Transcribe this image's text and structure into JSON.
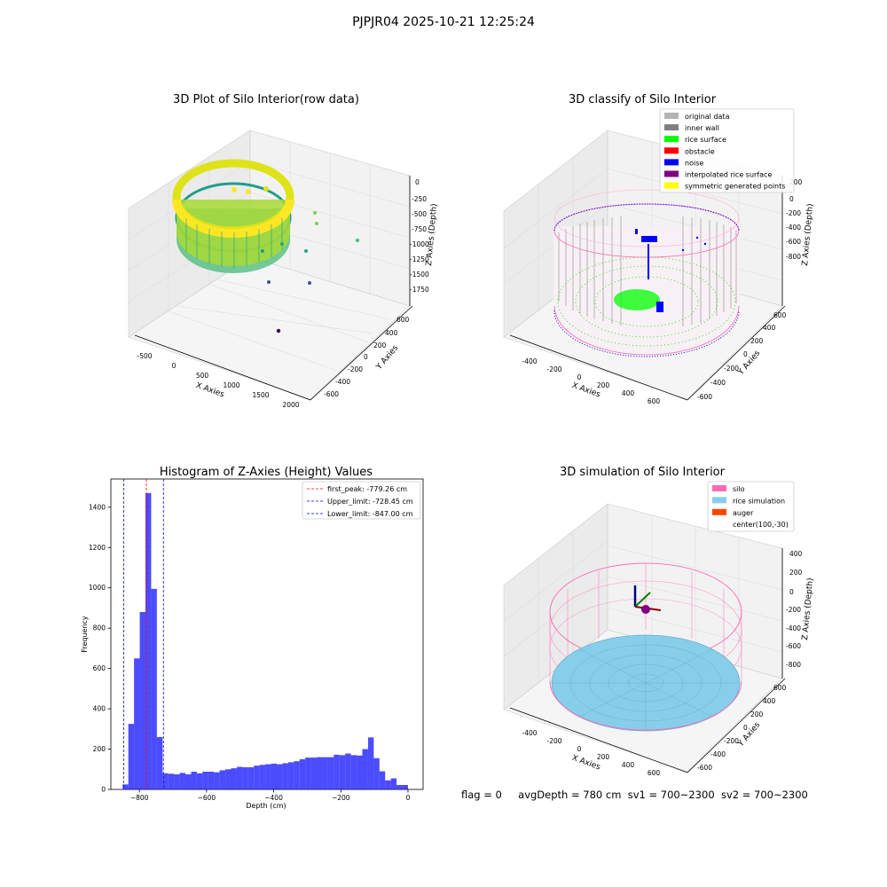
{
  "suptitle": "PJPJR04 2025-10-21 12:25:24",
  "caption": {
    "flag": "flag = 0",
    "avg_depth": "avgDepth = 780 cm",
    "sv1": "sv1 = 700~2300",
    "sv2": "sv2 = 700~2300"
  },
  "panels": {
    "raw": {
      "title": "3D Plot of Silo Interior(row data)",
      "xlabel": "X Axies",
      "ylabel": "Y Axies",
      "zlabel": "Z Axies (Depth)",
      "x_ticks": [
        "-500",
        "0",
        "500",
        "1000",
        "1500",
        "2000"
      ],
      "y_ticks": [
        "600",
        "400",
        "200",
        "0",
        "-200",
        "-400",
        "-600"
      ],
      "z_ticks": [
        "0",
        "-250",
        "-500",
        "-750",
        "-1000",
        "-1250",
        "-1500",
        "-1750"
      ]
    },
    "classify": {
      "title": "3D classify of Silo Interior",
      "xlabel": "X Axies",
      "ylabel": "Y Axies",
      "zlabel": "Z Axies (Depth)",
      "x_ticks": [
        "-400",
        "-200",
        "0",
        "200",
        "400",
        "600"
      ],
      "y_ticks": [
        "600",
        "400",
        "200",
        "0",
        "-200",
        "-400",
        "-600"
      ],
      "z_ticks": [
        "200",
        "0",
        "-200",
        "-400",
        "-600",
        "-800"
      ],
      "legend": [
        {
          "label": "original data",
          "color": "#b3b3b3"
        },
        {
          "label": "inner wall",
          "color": "#808080"
        },
        {
          "label": "rice surface",
          "color": "#00ff00"
        },
        {
          "label": "obstacle",
          "color": "#ff0000"
        },
        {
          "label": "noise",
          "color": "#0000ff"
        },
        {
          "label": "interpolated rice surface",
          "color": "#800080"
        },
        {
          "label": "symmetric generated points",
          "color": "#ffff00"
        }
      ]
    },
    "simulation": {
      "title": "3D simulation of Silo Interior",
      "xlabel": "X Axies",
      "ylabel": "Y Axies",
      "zlabel": "Z Axies (Depth)",
      "x_ticks": [
        "-400",
        "-200",
        "0",
        "200",
        "400",
        "600"
      ],
      "y_ticks": [
        "600",
        "400",
        "200",
        "0",
        "-200",
        "-400",
        "-600"
      ],
      "z_ticks": [
        "400",
        "200",
        "0",
        "-200",
        "-400",
        "-600",
        "-800"
      ],
      "legend": [
        {
          "label": "silo",
          "color": "#ff69b4"
        },
        {
          "label": "rice simulation",
          "color": "#87ceeb"
        },
        {
          "label": "auger",
          "color": "#ff4500"
        },
        {
          "label": "center(100,-30)",
          "color": ""
        }
      ]
    }
  },
  "chart_data": {
    "type": "bar",
    "title": "Histogram of Z-Axies (Height) Values",
    "xlabel": "Depth (cm)",
    "ylabel": "Frequency",
    "xlim": [
      -885,
      45
    ],
    "ylim": [
      0,
      1540
    ],
    "x_ticks": [
      -800,
      -600,
      -400,
      -200,
      0
    ],
    "y_ticks": [
      0,
      200,
      400,
      600,
      800,
      1000,
      1200,
      1400
    ],
    "bar_color": "#0000ff",
    "bins": [
      {
        "x0": -850,
        "x1": -833,
        "count": 25
      },
      {
        "x0": -833,
        "x1": -816,
        "count": 325
      },
      {
        "x0": -816,
        "x1": -799,
        "count": 650
      },
      {
        "x0": -799,
        "x1": -782,
        "count": 880
      },
      {
        "x0": -782,
        "x1": -765,
        "count": 1470
      },
      {
        "x0": -765,
        "x1": -748,
        "count": 995
      },
      {
        "x0": -748,
        "x1": -731,
        "count": 260
      },
      {
        "x0": -731,
        "x1": -714,
        "count": 80
      },
      {
        "x0": -714,
        "x1": -697,
        "count": 78
      },
      {
        "x0": -697,
        "x1": -680,
        "count": 75
      },
      {
        "x0": -680,
        "x1": -663,
        "count": 82
      },
      {
        "x0": -663,
        "x1": -646,
        "count": 75
      },
      {
        "x0": -646,
        "x1": -629,
        "count": 88
      },
      {
        "x0": -629,
        "x1": -612,
        "count": 80
      },
      {
        "x0": -612,
        "x1": -595,
        "count": 88
      },
      {
        "x0": -595,
        "x1": -578,
        "count": 88
      },
      {
        "x0": -578,
        "x1": -561,
        "count": 85
      },
      {
        "x0": -561,
        "x1": -544,
        "count": 95
      },
      {
        "x0": -544,
        "x1": -527,
        "count": 100
      },
      {
        "x0": -527,
        "x1": -510,
        "count": 105
      },
      {
        "x0": -510,
        "x1": -493,
        "count": 112
      },
      {
        "x0": -493,
        "x1": -476,
        "count": 110
      },
      {
        "x0": -476,
        "x1": -459,
        "count": 110
      },
      {
        "x0": -459,
        "x1": -442,
        "count": 118
      },
      {
        "x0": -442,
        "x1": -425,
        "count": 122
      },
      {
        "x0": -425,
        "x1": -408,
        "count": 125
      },
      {
        "x0": -408,
        "x1": -391,
        "count": 128
      },
      {
        "x0": -391,
        "x1": -374,
        "count": 125
      },
      {
        "x0": -374,
        "x1": -357,
        "count": 130
      },
      {
        "x0": -357,
        "x1": -340,
        "count": 135
      },
      {
        "x0": -340,
        "x1": -323,
        "count": 140
      },
      {
        "x0": -323,
        "x1": -306,
        "count": 150
      },
      {
        "x0": -306,
        "x1": -289,
        "count": 158
      },
      {
        "x0": -289,
        "x1": -272,
        "count": 158
      },
      {
        "x0": -272,
        "x1": -255,
        "count": 160
      },
      {
        "x0": -255,
        "x1": -238,
        "count": 160
      },
      {
        "x0": -238,
        "x1": -221,
        "count": 160
      },
      {
        "x0": -221,
        "x1": -204,
        "count": 172
      },
      {
        "x0": -204,
        "x1": -187,
        "count": 170
      },
      {
        "x0": -187,
        "x1": -170,
        "count": 178
      },
      {
        "x0": -170,
        "x1": -153,
        "count": 170
      },
      {
        "x0": -153,
        "x1": -136,
        "count": 168
      },
      {
        "x0": -136,
        "x1": -119,
        "count": 200
      },
      {
        "x0": -119,
        "x1": -102,
        "count": 258
      },
      {
        "x0": -102,
        "x1": -85,
        "count": 155
      },
      {
        "x0": -85,
        "x1": -68,
        "count": 90
      },
      {
        "x0": -68,
        "x1": -51,
        "count": 45
      },
      {
        "x0": -51,
        "x1": -34,
        "count": 55
      },
      {
        "x0": -34,
        "x1": -17,
        "count": 22
      },
      {
        "x0": -17,
        "x1": 0,
        "count": 22
      }
    ],
    "reference_lines": [
      {
        "label": "first_peak: -779.26 cm",
        "x": -779.26,
        "color": "#ff0000"
      },
      {
        "label": "Upper_limit: -728.45 cm",
        "x": -728.45,
        "color": "#0000ff"
      },
      {
        "label": "Lower_limit: -847.00 cm",
        "x": -847.0,
        "color": "#0000ff"
      }
    ]
  }
}
